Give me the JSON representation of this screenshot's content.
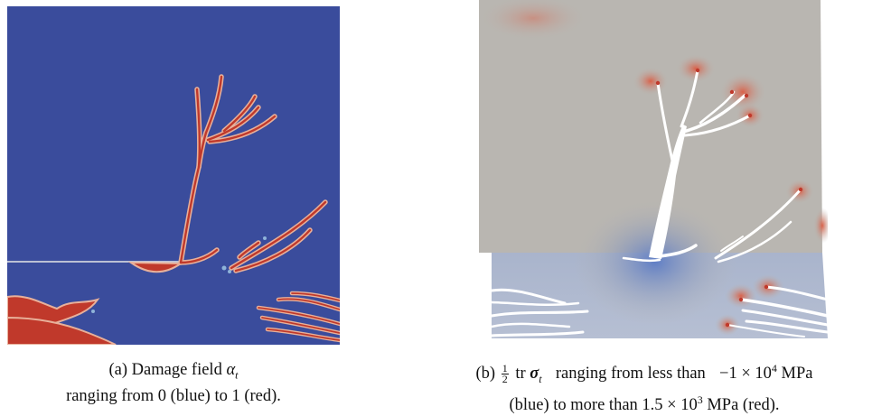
{
  "captions": {
    "a": {
      "label": "(a)",
      "line1_text": "Damage field",
      "symbol": "α",
      "symbol_subscript": "t",
      "line2": "ranging from 0 (blue) to 1 (red)."
    },
    "b": {
      "label": "(b)",
      "fraction_num": "1",
      "fraction_den": "2",
      "operator": "tr",
      "symbol": "σ",
      "symbol_subscript": "t",
      "line1_text": "ranging from less than",
      "low_value": "−1 × 10",
      "low_exponent": "4",
      "unit": "MPa",
      "line2_start": "(blue) to more than",
      "high_value": "1.5 × 10",
      "high_exponent": "3",
      "line2_end": "MPa (red)."
    }
  },
  "colors": {
    "damage_background": "#3a4c9c",
    "damage_crack": "#c0392b",
    "damage_edge": "#e8b09a",
    "stress_neutral": "#b9b6b1",
    "stress_blue": "#7c95cf",
    "stress_red": "#d9624a",
    "crack_void": "#ffffff"
  },
  "icons": [
    "damage-field-image",
    "stress-field-image"
  ]
}
